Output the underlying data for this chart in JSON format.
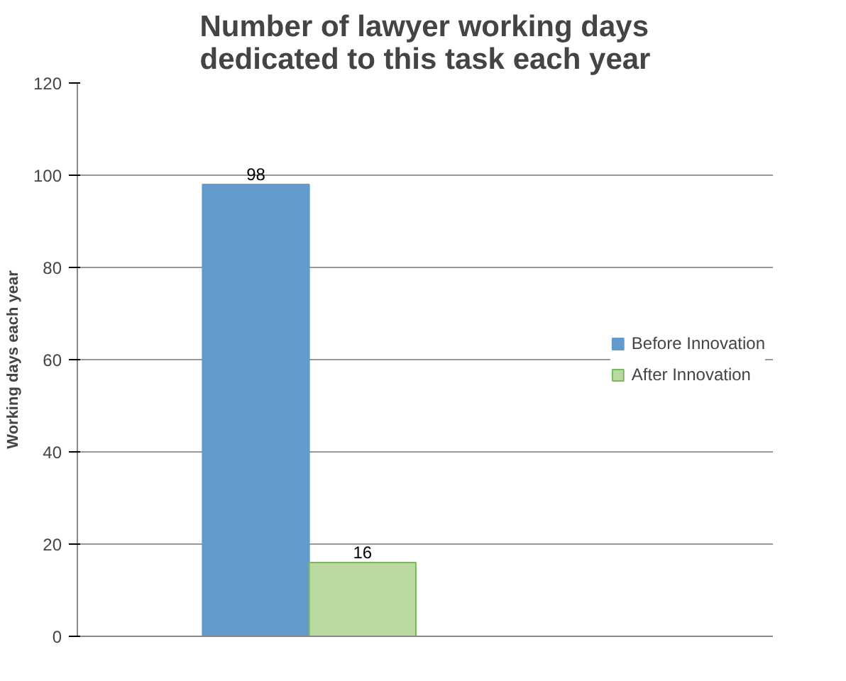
{
  "chart_data": {
    "type": "bar",
    "title": "Number of lawyer working days dedicated to this task each year",
    "ylabel": "Working days each year",
    "categories": [
      null
    ],
    "series": [
      {
        "name": "Before Innovation",
        "color": "#629bcb",
        "values": [
          98
        ]
      },
      {
        "name": "After Innovation",
        "color": "#b9d9a1",
        "values": [
          16
        ]
      }
    ],
    "ylim": [
      0,
      120
    ],
    "yticks": [
      0,
      20,
      40,
      60,
      80,
      100,
      120
    ],
    "grid": "y",
    "legend": "right",
    "data_labels": true
  }
}
